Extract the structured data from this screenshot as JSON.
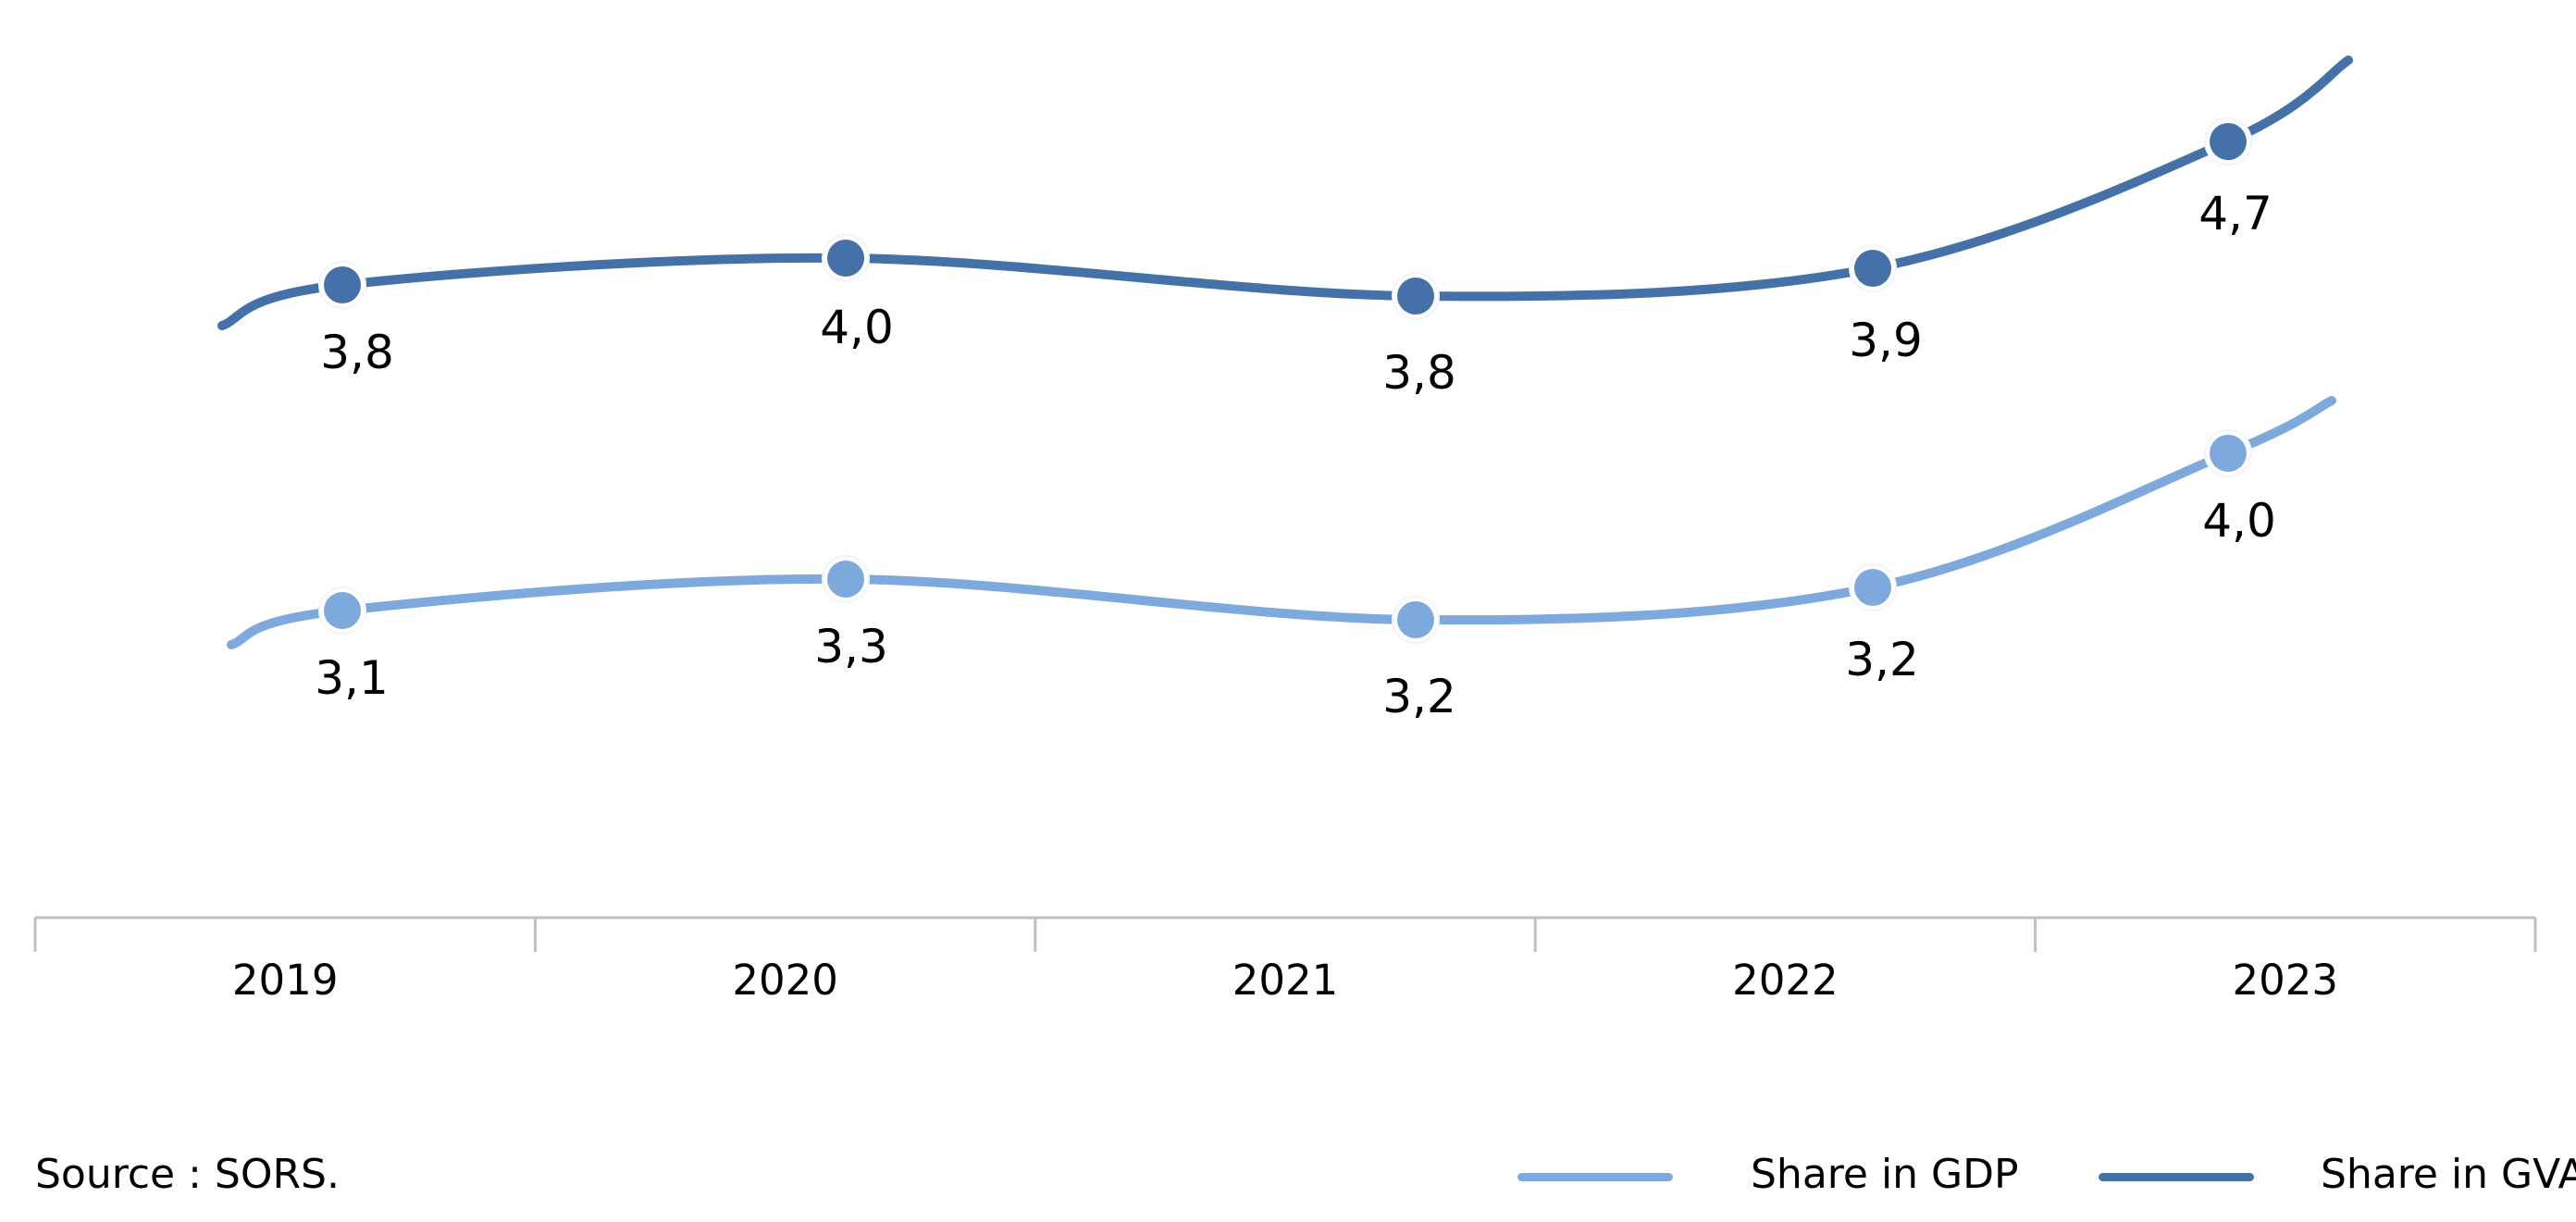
{
  "chart_data": {
    "type": "line",
    "categories": [
      "2019",
      "2020",
      "2021",
      "2022",
      "2023"
    ],
    "series": [
      {
        "name": "Share in GDP",
        "color": "#7da9dd",
        "values": [
          3.1,
          3.3,
          3.2,
          3.2,
          4.0
        ],
        "labels": [
          "3,1",
          "3,3",
          "3,2",
          "3,2",
          "4,0"
        ]
      },
      {
        "name": "Share in GVA",
        "color": "#4472a8",
        "values": [
          3.8,
          4.0,
          3.8,
          3.9,
          4.7
        ],
        "labels": [
          "3,8",
          "4,0",
          "3,8",
          "3,9",
          "4,7"
        ]
      }
    ],
    "smooth": true,
    "grid": false,
    "legend_position": "bottom-right",
    "axis_color": "#bfbfbf"
  },
  "footer": {
    "source": "Source : SORS."
  },
  "legend": {
    "items": [
      "Share in GDP",
      "Share in GVA"
    ]
  }
}
